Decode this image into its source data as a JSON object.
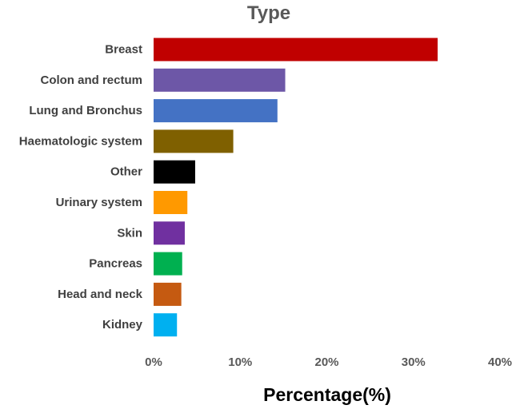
{
  "chart_data": {
    "type": "bar",
    "orientation": "horizontal",
    "title": "Type",
    "xlabel": "Percentage(%)",
    "ylabel": "",
    "xlim": [
      0,
      40
    ],
    "x_ticks": [
      0,
      10,
      20,
      30,
      40
    ],
    "x_tick_labels": [
      "0%",
      "10%",
      "20%",
      "30%",
      "40%"
    ],
    "grid": false,
    "legend": "none",
    "categories": [
      "Breast",
      "Colon and rectum",
      "Lung and Bronchus",
      "Haematologic system",
      "Other",
      "Urinary system",
      "Skin",
      "Pancreas",
      "Head and neck",
      "Kidney"
    ],
    "values": [
      32.8,
      15.2,
      14.3,
      9.2,
      4.8,
      3.9,
      3.6,
      3.3,
      3.2,
      2.7
    ],
    "colors": [
      "#C00000",
      "#6D57A7",
      "#4472C4",
      "#7F6000",
      "#000000",
      "#FF9900",
      "#7030A0",
      "#00B050",
      "#C55A11",
      "#00B0F0"
    ]
  }
}
